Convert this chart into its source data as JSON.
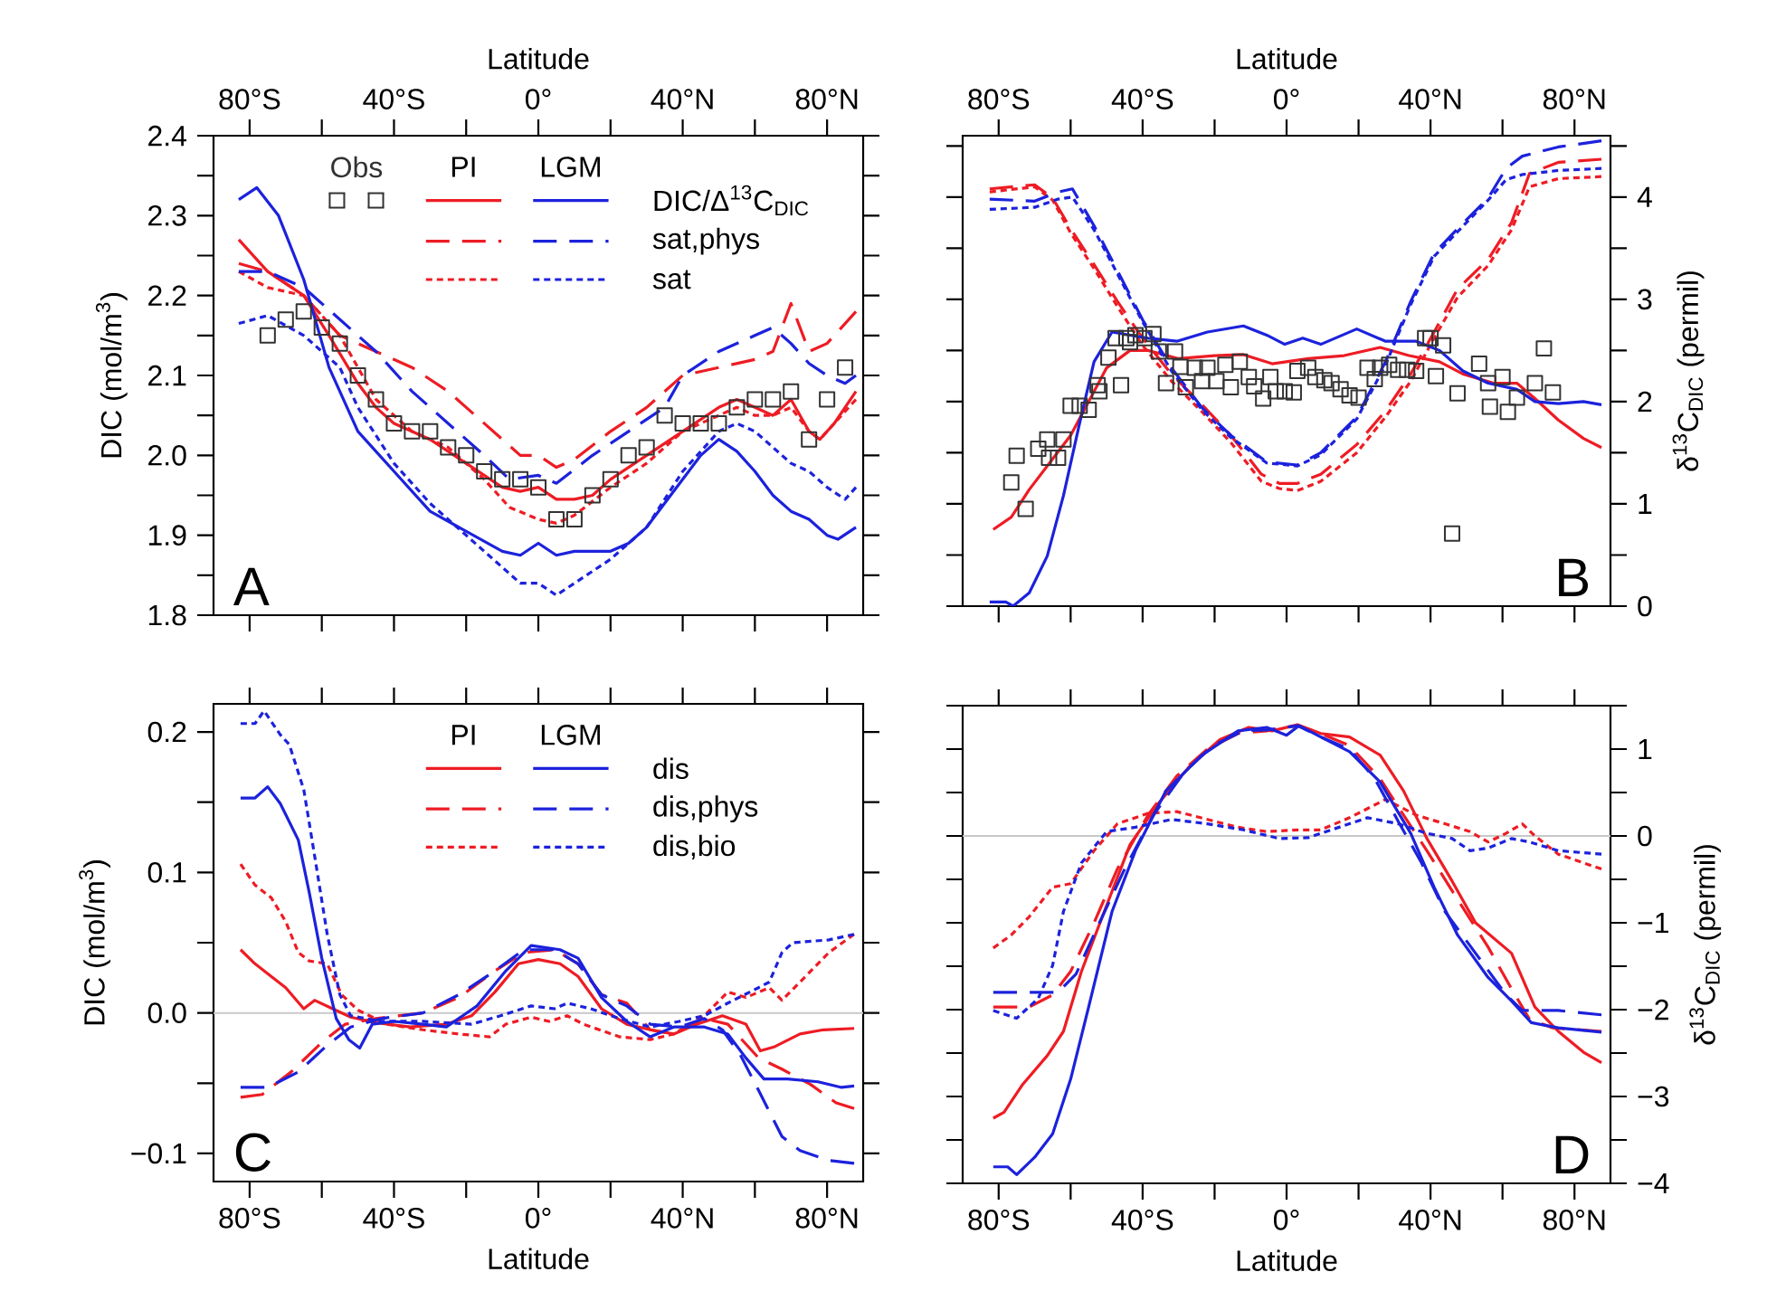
{
  "chart_data": [
    {
      "type": "line",
      "xlabel": "Latitude",
      "ylabel": "DIC (mol/m$^{3}$)",
      "xlim": [
        -90,
        90
      ],
      "ylim": [
        1.8,
        2.4
      ],
      "legend": "top right",
      "xticks": [
        {
          "value": -80,
          "label": "80°S"
        },
        {
          "value": -60,
          "label": null
        },
        {
          "value": -40,
          "label": "40°S"
        },
        {
          "value": -20,
          "label": null
        },
        {
          "value": 0,
          "label": "0°"
        },
        {
          "value": 20,
          "label": null
        },
        {
          "value": 40,
          "label": "40°N"
        },
        {
          "value": 60,
          "label": null
        },
        {
          "value": 80,
          "label": "80°N"
        }
      ],
      "yticks": [
        {
          "value": 1.8,
          "label": "1.8"
        },
        {
          "value": 1.85,
          "label": null
        },
        {
          "value": 1.9,
          "label": "1.9"
        },
        {
          "value": 1.95,
          "label": null
        },
        {
          "value": 2.0,
          "label": "2.0"
        },
        {
          "value": 2.05,
          "label": null
        },
        {
          "value": 2.1,
          "label": "2.1"
        },
        {
          "value": 2.15,
          "label": null
        },
        {
          "value": 2.2,
          "label": "2.2"
        },
        {
          "value": 2.25,
          "label": null
        },
        {
          "value": 2.3,
          "label": "2.3"
        },
        {
          "value": 2.35,
          "label": null
        },
        {
          "value": 2.4,
          "label": "2.4"
        }
      ],
      "annotations": [
        "PI",
        "LGM",
        "A"
      ],
      "series": [
        {
          "color": "#ee1c24",
          "line_style": "solid",
          "x": [
            -83,
            -75,
            -65,
            -58,
            -50,
            -45,
            -40,
            -30,
            -20,
            -10,
            -5,
            0,
            5,
            10,
            15,
            20,
            30,
            40,
            50,
            55,
            60,
            65,
            70,
            75,
            78,
            82,
            88
          ],
          "values": [
            2.27,
            2.23,
            2.2,
            2.15,
            2.09,
            2.06,
            2.04,
            2.02,
            1.99,
            1.96,
            1.955,
            1.96,
            1.945,
            1.945,
            1.95,
            1.97,
            2.0,
            2.03,
            2.06,
            2.07,
            2.06,
            2.05,
            2.07,
            2.03,
            2.02,
            2.04,
            2.08
          ]
        },
        {
          "color": "#ee1c24",
          "line_style": "dashed",
          "x": [
            -83,
            -75,
            -65,
            -55,
            -45,
            -35,
            -25,
            -15,
            -5,
            0,
            5,
            10,
            20,
            30,
            40,
            50,
            60,
            65,
            70,
            75,
            80,
            88
          ],
          "values": [
            2.24,
            2.23,
            2.2,
            2.15,
            2.13,
            2.11,
            2.08,
            2.04,
            2.0,
            2.0,
            1.985,
            1.995,
            2.03,
            2.06,
            2.1,
            2.11,
            2.12,
            2.13,
            2.19,
            2.13,
            2.14,
            2.18
          ]
        },
        {
          "color": "#ee1c24",
          "line_style": "dotted",
          "x": [
            -83,
            -75,
            -65,
            -55,
            -45,
            -35,
            -25,
            -15,
            -8,
            0,
            5,
            10,
            20,
            30,
            40,
            50,
            55,
            60,
            65,
            70,
            75,
            78,
            82,
            88
          ],
          "values": [
            2.23,
            2.21,
            2.2,
            2.15,
            2.07,
            2.03,
            2.01,
            1.97,
            1.935,
            1.92,
            1.915,
            1.925,
            1.96,
            1.99,
            2.03,
            2.05,
            2.06,
            2.05,
            2.05,
            2.06,
            2.03,
            2.02,
            2.04,
            2.07
          ]
        },
        {
          "name": "DIC/Δ$^{13}$C$_{DIC}$",
          "color": "#1c22dc",
          "line_style": "solid",
          "x": [
            -83,
            -78,
            -72,
            -65,
            -58,
            -50,
            -40,
            -30,
            -20,
            -10,
            -5,
            0,
            5,
            10,
            20,
            25,
            30,
            40,
            45,
            50,
            55,
            60,
            65,
            70,
            75,
            80,
            83,
            88
          ],
          "values": [
            2.32,
            2.335,
            2.3,
            2.22,
            2.11,
            2.03,
            1.98,
            1.93,
            1.905,
            1.88,
            1.875,
            1.89,
            1.875,
            1.88,
            1.88,
            1.89,
            1.91,
            1.97,
            2.0,
            2.02,
            2.005,
            1.98,
            1.95,
            1.93,
            1.92,
            1.9,
            1.895,
            1.91
          ]
        },
        {
          "name": "sat,phys",
          "color": "#1c22dc",
          "line_style": "dashed",
          "x": [
            -83,
            -75,
            -65,
            -55,
            -45,
            -35,
            -25,
            -15,
            -8,
            0,
            5,
            15,
            25,
            35,
            40,
            50,
            60,
            65,
            70,
            75,
            80,
            85,
            88
          ],
          "values": [
            2.23,
            2.23,
            2.21,
            2.17,
            2.13,
            2.08,
            2.04,
            2.0,
            1.97,
            1.975,
            1.965,
            2.0,
            2.03,
            2.06,
            2.1,
            2.13,
            2.15,
            2.16,
            2.14,
            2.115,
            2.1,
            2.09,
            2.1
          ]
        },
        {
          "name": "sat",
          "color": "#1c22dc",
          "line_style": "dotted",
          "x": [
            -83,
            -75,
            -65,
            -55,
            -50,
            -40,
            -30,
            -20,
            -10,
            -5,
            0,
            5,
            10,
            20,
            30,
            40,
            50,
            55,
            60,
            65,
            70,
            75,
            80,
            85,
            88
          ],
          "values": [
            2.165,
            2.175,
            2.15,
            2.11,
            2.06,
            1.99,
            1.94,
            1.9,
            1.86,
            1.84,
            1.84,
            1.825,
            1.84,
            1.87,
            1.91,
            1.98,
            2.03,
            2.04,
            2.03,
            2.01,
            1.99,
            1.98,
            1.96,
            1.945,
            1.96
          ]
        },
        {
          "name": "Obs",
          "type": "scatter",
          "marker": "square",
          "color": "#333333",
          "x": [
            -75,
            -70,
            -65,
            -60,
            -55,
            -50,
            -45,
            -40,
            -35,
            -30,
            -25,
            -20,
            -15,
            -10,
            -5,
            0,
            5,
            10,
            15,
            20,
            25,
            30,
            35,
            40,
            45,
            50,
            55,
            60,
            65,
            70,
            75,
            80,
            85
          ],
          "values": [
            2.15,
            2.17,
            2.18,
            2.16,
            2.14,
            2.1,
            2.07,
            2.04,
            2.03,
            2.03,
            2.01,
            2.0,
            1.98,
            1.97,
            1.97,
            1.96,
            1.92,
            1.92,
            1.95,
            1.97,
            2.0,
            2.01,
            2.05,
            2.04,
            2.04,
            2.04,
            2.06,
            2.07,
            2.07,
            2.08,
            2.02,
            2.07,
            2.11
          ]
        }
      ]
    },
    {
      "type": "line",
      "xlabel": "Latitude",
      "ylabel": "δ$^{13}$C$_{DIC}$ (permil)",
      "xlim": [
        -90,
        90
      ],
      "ylim": [
        0,
        4.6
      ],
      "xticks": [
        {
          "value": -80,
          "label": "80°S"
        },
        {
          "value": -60,
          "label": null
        },
        {
          "value": -40,
          "label": "40°S"
        },
        {
          "value": -20,
          "label": null
        },
        {
          "value": 0,
          "label": "0°"
        },
        {
          "value": 20,
          "label": null
        },
        {
          "value": 40,
          "label": "40°N"
        },
        {
          "value": 60,
          "label": null
        },
        {
          "value": 80,
          "label": "80°N"
        }
      ],
      "yticks": [
        {
          "value": 0,
          "label": "0"
        },
        {
          "value": 0.5,
          "label": null
        },
        {
          "value": 1,
          "label": "1"
        },
        {
          "value": 1.5,
          "label": null
        },
        {
          "value": 2,
          "label": "2"
        },
        {
          "value": 2.5,
          "label": null
        },
        {
          "value": 3,
          "label": "3"
        },
        {
          "value": 3.5,
          "label": null
        },
        {
          "value": 4,
          "label": "4"
        },
        {
          "value": 4.5,
          "label": null
        }
      ],
      "annotations": [
        "B"
      ],
      "series": [
        {
          "color": "#ee1c24",
          "line_style": "solid",
          "x": [
            -81.5,
            -76.5,
            -71.5,
            -65,
            -60,
            -55,
            -50,
            -43.5,
            -38.5,
            -30,
            -20,
            -12,
            -4,
            6,
            16,
            26,
            34,
            42.5,
            49,
            57.5,
            64,
            69,
            75.5,
            82.5,
            87.5
          ],
          "values": [
            0.75,
            0.87,
            1.14,
            1.44,
            1.67,
            2.0,
            2.33,
            2.5,
            2.5,
            2.42,
            2.45,
            2.46,
            2.37,
            2.42,
            2.45,
            2.53,
            2.45,
            2.39,
            2.27,
            2.18,
            2.18,
            2.03,
            1.82,
            1.64,
            1.55
          ]
        },
        {
          "color": "#ee1c24",
          "line_style": "dashed",
          "x": [
            -82.5,
            -70,
            -65,
            -60,
            -53.5,
            -47,
            -40,
            -32,
            -23.5,
            -15.5,
            -7,
            -2,
            3,
            9.5,
            19.5,
            27.5,
            34.5,
            41,
            47.5,
            56,
            62.5,
            67.5,
            75.5,
            87.5
          ],
          "values": [
            4.08,
            4.12,
            3.99,
            3.69,
            3.34,
            2.98,
            2.62,
            2.27,
            1.97,
            1.67,
            1.29,
            1.2,
            1.2,
            1.29,
            1.58,
            1.91,
            2.27,
            2.68,
            3.1,
            3.39,
            3.75,
            4.23,
            4.34,
            4.37
          ]
        },
        {
          "color": "#ee1c24",
          "line_style": "dotted",
          "x": [
            -82.5,
            -70,
            -65,
            -60,
            -53.5,
            -47,
            -40,
            -32,
            -23.5,
            -15.5,
            -7,
            -2,
            3,
            9.5,
            19.5,
            27.5,
            34.5,
            41,
            47.5,
            56,
            62.5,
            67.5,
            75.5,
            87.5
          ],
          "values": [
            4.05,
            4.1,
            3.97,
            3.65,
            3.3,
            2.93,
            2.55,
            2.2,
            1.9,
            1.6,
            1.22,
            1.15,
            1.13,
            1.22,
            1.5,
            1.85,
            2.2,
            2.62,
            3.02,
            3.33,
            3.68,
            4.1,
            4.18,
            4.2
          ]
        },
        {
          "color": "#1c22dc",
          "line_style": "solid",
          "x": [
            -82.5,
            -78,
            -76,
            -71.5,
            -66.5,
            -62,
            -57.5,
            -53.5,
            -48.5,
            -38.5,
            -30.5,
            -22,
            -12,
            -5.5,
            -0.5,
            4.5,
            9.5,
            19.5,
            27.5,
            36,
            42.5,
            49,
            56,
            64,
            69,
            75.5,
            82.5,
            87.5
          ],
          "values": [
            0.04,
            0.04,
            0.0,
            0.13,
            0.49,
            1.08,
            1.79,
            2.39,
            2.68,
            2.62,
            2.59,
            2.68,
            2.74,
            2.65,
            2.56,
            2.62,
            2.56,
            2.71,
            2.59,
            2.59,
            2.5,
            2.3,
            2.18,
            2.12,
            2.0,
            1.98,
            2.0,
            1.97
          ]
        },
        {
          "color": "#1c22dc",
          "line_style": "dashed",
          "x": [
            -82.5,
            -70,
            -63.5,
            -59.5,
            -53.5,
            -47,
            -40,
            -32,
            -23.5,
            -15.5,
            -5.5,
            3,
            9.5,
            19.5,
            27.5,
            34.5,
            41,
            47.5,
            56,
            61,
            65.5,
            75.5,
            87.5
          ],
          "values": [
            3.98,
            3.96,
            4.05,
            4.08,
            3.72,
            3.28,
            2.8,
            2.33,
            1.94,
            1.67,
            1.41,
            1.38,
            1.5,
            1.85,
            2.39,
            2.98,
            3.45,
            3.69,
            3.99,
            4.28,
            4.4,
            4.49,
            4.55
          ]
        },
        {
          "color": "#1c22dc",
          "line_style": "dotted",
          "x": [
            -82.5,
            -70,
            -63.5,
            -59.5,
            -53.5,
            -47,
            -40,
            -32,
            -23.5,
            -15.5,
            -5.5,
            3,
            9.5,
            19.5,
            27.5,
            34.5,
            41,
            47.5,
            56,
            61,
            65.5,
            75.5,
            87.5
          ],
          "values": [
            3.88,
            3.9,
            3.98,
            4.0,
            3.68,
            3.25,
            2.78,
            2.3,
            1.92,
            1.65,
            1.4,
            1.37,
            1.48,
            1.83,
            2.36,
            2.95,
            3.42,
            3.66,
            3.97,
            4.17,
            4.22,
            4.26,
            4.28
          ]
        },
        {
          "type": "scatter",
          "marker": "square",
          "color": "#333333",
          "x": [
            -76.5,
            -75,
            -72.5,
            -69,
            -66.5,
            -66,
            -63.5,
            -62,
            -60,
            -57.5,
            -55,
            -52.5,
            -52,
            -49.5,
            -47.5,
            -46,
            -44.5,
            -43.5,
            -42,
            -39.5,
            -37,
            -35.5,
            -33.5,
            -31,
            -29.5,
            -28,
            -25.5,
            -23.5,
            -22,
            -19.5,
            -17,
            -15.5,
            -13,
            -10.5,
            -9,
            -6.5,
            -4.5,
            -3,
            -0.5,
            2,
            3,
            6,
            8,
            10.5,
            12.5,
            15,
            17.5,
            20,
            22.5,
            24.5,
            26,
            28.5,
            31,
            33.5,
            36,
            38.5,
            40,
            41.5,
            43.5,
            46,
            47.5,
            53.5,
            56,
            56.5,
            60,
            61.5,
            64,
            69,
            71.5,
            74
          ],
          "values": [
            1.21,
            1.47,
            0.95,
            1.54,
            1.63,
            1.45,
            1.45,
            1.63,
            1.96,
            1.96,
            1.92,
            2.16,
            2.1,
            2.43,
            2.62,
            2.16,
            2.62,
            2.58,
            2.65,
            2.62,
            2.66,
            2.49,
            2.18,
            2.49,
            2.34,
            2.14,
            2.33,
            2.2,
            2.33,
            2.2,
            2.36,
            2.14,
            2.39,
            2.24,
            2.15,
            2.03,
            2.24,
            2.1,
            2.1,
            2.09,
            2.3,
            2.33,
            2.24,
            2.21,
            2.18,
            2.12,
            2.06,
            2.04,
            2.33,
            2.22,
            2.33,
            2.36,
            2.31,
            2.31,
            2.3,
            2.62,
            2.62,
            2.25,
            2.55,
            0.71,
            2.08,
            2.37,
            2.18,
            1.95,
            2.24,
            1.9,
            2.04,
            2.18,
            2.52,
            2.09
          ]
        }
      ]
    },
    {
      "type": "line",
      "xlabel": "Latitude",
      "ylabel": "DIC (mol/m$^{3}$)",
      "xlim": [
        -90,
        90
      ],
      "ylim": [
        -0.12,
        0.22
      ],
      "legend": "top right",
      "xticks": [
        {
          "value": -80,
          "label": "80°S"
        },
        {
          "value": -60,
          "label": null
        },
        {
          "value": -40,
          "label": "40°S"
        },
        {
          "value": -20,
          "label": null
        },
        {
          "value": 0,
          "label": "0°"
        },
        {
          "value": 20,
          "label": null
        },
        {
          "value": 40,
          "label": "40°N"
        },
        {
          "value": 60,
          "label": null
        },
        {
          "value": 80,
          "label": "80°N"
        }
      ],
      "yticks": [
        {
          "value": -0.1,
          "label": "−0.1"
        },
        {
          "value": -0.05,
          "label": null
        },
        {
          "value": 0,
          "label": "0.0"
        },
        {
          "value": 0.05,
          "label": null
        },
        {
          "value": 0.1,
          "label": "0.1"
        },
        {
          "value": 0.15,
          "label": null
        },
        {
          "value": 0.2,
          "label": "0.2"
        }
      ],
      "annotations": [
        "PI",
        "LGM",
        "C"
      ],
      "ref_lines": [
        {
          "axis": "y",
          "value": 0,
          "color": "#c8c8c8"
        }
      ],
      "series": [
        {
          "color": "#ee1c24",
          "line_style": "solid",
          "x": [
            -82.5,
            -78.5,
            -75,
            -70,
            -65,
            -62,
            -57,
            -52,
            -45,
            -35.5,
            -25.5,
            -18.5,
            -12,
            -5.5,
            0,
            6,
            11,
            17.5,
            24.5,
            31,
            37.5,
            44,
            51,
            57.5,
            61.5,
            65.5,
            72.5,
            79,
            87.5
          ],
          "values": [
            0.045,
            0.035,
            0.028,
            0.018,
            0.003,
            0.009,
            0.003,
            -0.003,
            -0.007,
            -0.01,
            -0.008,
            -0.002,
            0.015,
            0.035,
            0.038,
            0.035,
            0.026,
            0.003,
            -0.008,
            -0.012,
            -0.015,
            -0.008,
            -0.002,
            -0.008,
            -0.027,
            -0.024,
            -0.015,
            -0.012,
            -0.011
          ]
        },
        {
          "color": "#ee1c24",
          "line_style": "dashed",
          "x": [
            -82.5,
            -76.5,
            -68.5,
            -60,
            -53.5,
            -45,
            -32,
            -22,
            -12,
            -4,
            4.5,
            11,
            17.5,
            24.5,
            31,
            37.5,
            46,
            52.5,
            61,
            67.5,
            75.5,
            82.5,
            87.5
          ],
          "values": [
            -0.06,
            -0.058,
            -0.042,
            -0.021,
            -0.008,
            -0.004,
            0.0,
            0.011,
            0.03,
            0.043,
            0.045,
            0.035,
            0.013,
            0.007,
            -0.012,
            -0.015,
            -0.004,
            -0.008,
            -0.032,
            -0.04,
            -0.051,
            -0.064,
            -0.068
          ]
        },
        {
          "color": "#ee1c24",
          "line_style": "dotted",
          "x": [
            -82.5,
            -78.5,
            -74,
            -70,
            -66.5,
            -63.5,
            -58.5,
            -54.5,
            -50,
            -42,
            -32,
            -22,
            -13.5,
            -9,
            -2,
            3,
            8,
            12.5,
            22.5,
            31,
            37.5,
            46,
            52.5,
            57.5,
            64,
            67.5,
            72.5,
            80.5,
            87.5
          ],
          "values": [
            0.106,
            0.091,
            0.082,
            0.065,
            0.043,
            0.037,
            0.035,
            0.013,
            0.002,
            -0.008,
            -0.012,
            -0.015,
            -0.017,
            -0.008,
            -0.003,
            -0.006,
            -0.002,
            -0.008,
            -0.017,
            -0.019,
            -0.015,
            -0.002,
            0.015,
            0.011,
            0.018,
            0.009,
            0.022,
            0.043,
            0.056
          ]
        },
        {
          "name": "dis",
          "color": "#1c22dc",
          "line_style": "solid",
          "x": [
            -82.5,
            -78.5,
            -75,
            -71.5,
            -66.5,
            -63.5,
            -60,
            -56,
            -52.5,
            -49.5,
            -46,
            -40,
            -32,
            -25.5,
            -17,
            -9,
            -2,
            6,
            11,
            17.5,
            24.5,
            31,
            37.5,
            46,
            52.5,
            57.5,
            62.5,
            69,
            77.5,
            84,
            87.5
          ],
          "values": [
            0.153,
            0.153,
            0.161,
            0.149,
            0.123,
            0.086,
            0.039,
            -0.004,
            -0.019,
            -0.025,
            -0.008,
            -0.006,
            -0.008,
            -0.01,
            0.005,
            0.03,
            0.048,
            0.045,
            0.039,
            0.011,
            -0.006,
            -0.017,
            -0.01,
            -0.01,
            -0.015,
            -0.032,
            -0.047,
            -0.047,
            -0.049,
            -0.053,
            -0.052
          ]
        },
        {
          "name": "dis,phys",
          "color": "#1c22dc",
          "line_style": "dashed",
          "x": [
            -82.5,
            -75,
            -66.5,
            -58.5,
            -52,
            -43.5,
            -32,
            -22,
            -12,
            -4,
            4.5,
            11,
            17.5,
            24.5,
            31,
            39,
            46,
            51,
            56,
            61,
            67.5,
            72.5,
            80.5,
            87.5
          ],
          "values": [
            -0.053,
            -0.053,
            -0.042,
            -0.023,
            -0.01,
            -0.004,
            0.0,
            0.013,
            0.03,
            0.045,
            0.045,
            0.035,
            0.013,
            0.005,
            -0.008,
            -0.01,
            -0.004,
            -0.012,
            -0.03,
            -0.055,
            -0.088,
            -0.098,
            -0.105,
            -0.107
          ]
        },
        {
          "name": "dis,bio",
          "color": "#1c22dc",
          "line_style": "dotted",
          "x": [
            -82.5,
            -78.5,
            -76,
            -71.5,
            -69,
            -65,
            -62,
            -58.5,
            -55,
            -52,
            -43.5,
            -32,
            -18.5,
            -10.5,
            -2,
            4.5,
            8,
            14.5,
            22.5,
            31,
            39,
            46,
            52.5,
            61,
            64,
            67.5,
            70.5,
            80.5,
            87.5
          ],
          "values": [
            0.206,
            0.206,
            0.215,
            0.198,
            0.191,
            0.159,
            0.112,
            0.056,
            0.013,
            -0.002,
            -0.006,
            -0.006,
            -0.008,
            -0.002,
            0.005,
            0.003,
            0.007,
            0.003,
            -0.004,
            -0.01,
            -0.006,
            -0.002,
            0.007,
            0.018,
            0.022,
            0.043,
            0.05,
            0.052,
            0.056
          ]
        }
      ]
    },
    {
      "type": "line",
      "xlabel": "Latitude",
      "ylabel": "δ$^{13}$C$_{DIC}$ (permil)",
      "xlim": [
        -90,
        90
      ],
      "ylim": [
        -4,
        1.5
      ],
      "xticks": [
        {
          "value": -80,
          "label": "80°S"
        },
        {
          "value": -60,
          "label": null
        },
        {
          "value": -40,
          "label": "40°S"
        },
        {
          "value": -20,
          "label": null
        },
        {
          "value": 0,
          "label": "0°"
        },
        {
          "value": 20,
          "label": null
        },
        {
          "value": 40,
          "label": "40°N"
        },
        {
          "value": 60,
          "label": null
        },
        {
          "value": 80,
          "label": "80°N"
        }
      ],
      "yticks": [
        {
          "value": -4,
          "label": "−4"
        },
        {
          "value": -3.5,
          "label": null
        },
        {
          "value": -3,
          "label": "−3"
        },
        {
          "value": -2.5,
          "label": null
        },
        {
          "value": -2,
          "label": "−2"
        },
        {
          "value": -1.5,
          "label": null
        },
        {
          "value": -1,
          "label": "−1"
        },
        {
          "value": -0.5,
          "label": null
        },
        {
          "value": 0,
          "label": "0"
        },
        {
          "value": 0.5,
          "label": null
        },
        {
          "value": 1,
          "label": "1"
        },
        {
          "value": 1.5,
          "label": null
        }
      ],
      "annotations": [
        "D"
      ],
      "ref_lines": [
        {
          "axis": "y",
          "value": 0,
          "color": "#c8c8c8"
        }
      ],
      "series": [
        {
          "color": "#ee1c24",
          "line_style": "solid",
          "x": [
            -81.5,
            -78.5,
            -73.5,
            -66.5,
            -62,
            -57,
            -50,
            -43.5,
            -35.5,
            -27,
            -18.5,
            -10.5,
            -4,
            3,
            9.5,
            17.5,
            26,
            32.5,
            39,
            46,
            52.5,
            62.5,
            69,
            75.5,
            82.5,
            87.5
          ],
          "values": [
            -3.25,
            -3.18,
            -2.87,
            -2.53,
            -2.25,
            -1.56,
            -0.8,
            -0.1,
            0.38,
            0.8,
            1.11,
            1.25,
            1.21,
            1.28,
            1.18,
            1.14,
            0.93,
            0.52,
            -0.03,
            -0.52,
            -1.0,
            -1.35,
            -1.97,
            -2.25,
            -2.49,
            -2.61
          ]
        },
        {
          "color": "#ee1c24",
          "line_style": "dashed",
          "x": [
            -81.5,
            -71.5,
            -65,
            -60,
            -53.5,
            -47,
            -38.5,
            -30.5,
            -22,
            -13.5,
            -5.5,
            3,
            9.5,
            17.5,
            26,
            32.5,
            39,
            47.5,
            56,
            62.5,
            67.5,
            74,
            87.5
          ],
          "values": [
            -1.97,
            -1.97,
            -1.83,
            -1.56,
            -1.0,
            -0.38,
            0.24,
            0.69,
            1.0,
            1.18,
            1.21,
            1.27,
            1.18,
            1.04,
            0.66,
            0.24,
            -0.17,
            -0.73,
            -1.28,
            -1.76,
            -2.11,
            -2.21,
            -2.25
          ]
        },
        {
          "color": "#ee1c24",
          "line_style": "dotted",
          "x": [
            -81.5,
            -76.5,
            -71.5,
            -65,
            -60,
            -53.5,
            -47,
            -38.5,
            -30.5,
            -22,
            -13.5,
            -5.5,
            3,
            9.5,
            17.5,
            27.5,
            36,
            44,
            51,
            56,
            61,
            65.5,
            69,
            75.5,
            82.5,
            87.5
          ],
          "values": [
            -1.29,
            -1.14,
            -0.93,
            -0.59,
            -0.55,
            -0.17,
            0.14,
            0.26,
            0.28,
            0.19,
            0.1,
            0.05,
            0.07,
            0.07,
            0.21,
            0.42,
            0.24,
            0.14,
            0.05,
            -0.07,
            0.03,
            0.14,
            0.0,
            -0.21,
            -0.31,
            -0.38
          ]
        },
        {
          "color": "#1c22dc",
          "line_style": "solid",
          "x": [
            -81.5,
            -77.5,
            -75,
            -70,
            -65,
            -60,
            -55,
            -48.5,
            -42,
            -33.5,
            -23.5,
            -13.5,
            -5.5,
            0,
            3.5,
            9.5,
            17.5,
            26,
            34.5,
            41,
            47.5,
            56,
            62.5,
            68,
            75.5,
            87.5
          ],
          "values": [
            -3.81,
            -3.81,
            -3.9,
            -3.7,
            -3.43,
            -2.8,
            -1.97,
            -0.87,
            -0.17,
            0.52,
            0.93,
            1.21,
            1.25,
            1.16,
            1.27,
            1.14,
            0.97,
            0.62,
            0.03,
            -0.59,
            -1.14,
            -1.63,
            -1.9,
            -2.15,
            -2.21,
            -2.26
          ]
        },
        {
          "color": "#1c22dc",
          "line_style": "dashed",
          "x": [
            -81.5,
            -63.5,
            -58.5,
            -52,
            -45,
            -37,
            -28.5,
            -20.5,
            -12,
            -5.5,
            3,
            9.5,
            17.5,
            24.5,
            31,
            37.5,
            44,
            52.5,
            61,
            65.5,
            75.5,
            87.5
          ],
          "values": [
            -1.8,
            -1.8,
            -1.59,
            -1.0,
            -0.38,
            0.24,
            0.73,
            1.04,
            1.21,
            1.22,
            1.27,
            1.14,
            1.0,
            0.66,
            0.17,
            -0.31,
            -0.87,
            -1.35,
            -1.83,
            -2.01,
            -2.01,
            -2.06
          ]
        },
        {
          "color": "#1c22dc",
          "line_style": "dotted",
          "x": [
            -81.5,
            -75,
            -69,
            -65,
            -62,
            -57,
            -50,
            -42,
            -32,
            -22,
            -12,
            -2,
            6,
            16,
            22.5,
            31,
            39,
            46,
            51,
            56,
            62.5,
            67.5,
            75.5,
            87.5
          ],
          "values": [
            -2.01,
            -2.1,
            -1.87,
            -1.49,
            -0.87,
            -0.31,
            0.05,
            0.1,
            0.19,
            0.14,
            0.07,
            -0.03,
            -0.02,
            0.12,
            0.21,
            0.14,
            0.03,
            -0.03,
            -0.17,
            -0.14,
            -0.03,
            -0.07,
            -0.17,
            -0.21
          ]
        }
      ]
    }
  ]
}
